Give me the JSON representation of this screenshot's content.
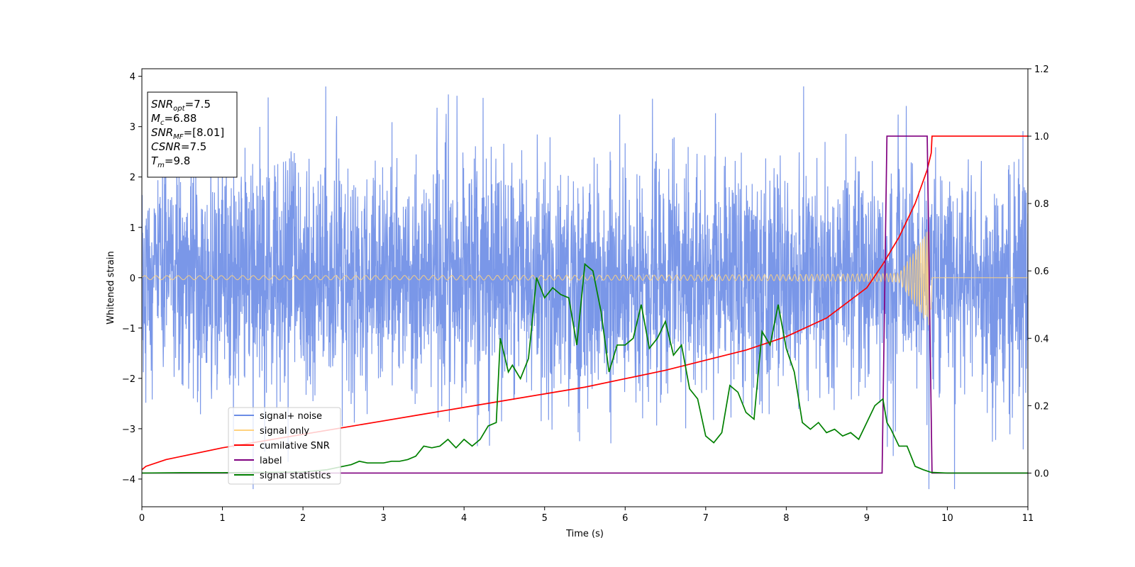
{
  "chart_data": {
    "type": "line",
    "xlabel": "Time (s)",
    "ylabel": "Whitened strain",
    "xlim": [
      0,
      11
    ],
    "ylim_left": [
      -4.55,
      4.15
    ],
    "ylim_right": [
      -0.1,
      1.2
    ],
    "x_ticks": [
      0,
      1,
      2,
      3,
      4,
      5,
      6,
      7,
      8,
      9,
      10,
      11
    ],
    "y_ticks_left": [
      -4,
      -3,
      -2,
      -1,
      0,
      1,
      2,
      3,
      4
    ],
    "y_ticks_right": [
      0.0,
      0.2,
      0.4,
      0.6,
      0.8,
      1.0,
      1.2
    ],
    "y_tick_labels_left": [
      "−4",
      "−3",
      "−2",
      "−1",
      "0",
      "1",
      "2",
      "3",
      "4"
    ],
    "y_tick_labels_right": [
      "0.0",
      "0.2",
      "0.4",
      "0.6",
      "0.8",
      "1.0",
      "1.2"
    ],
    "grid": false,
    "legend_position": "lower-left",
    "annotation": {
      "lines": [
        {
          "base": "SNR",
          "sub": "opt",
          "rest": "=7.5"
        },
        {
          "base": "M",
          "sub": "c",
          "rest": "=6.88"
        },
        {
          "base": "SNR",
          "sub": "MF",
          "rest": "=[8.01]"
        },
        {
          "base": "CSNR",
          "sub": "",
          "rest": "=7.5"
        },
        {
          "base": "T",
          "sub": "m",
          "rest": "=9.8"
        }
      ]
    },
    "series": [
      {
        "name": "signal+ noise",
        "axis": "left",
        "color": "#6b8ce6",
        "kind": "noise band",
        "noise_std": 1.0,
        "x_range": [
          0,
          11
        ]
      },
      {
        "name": "signal only",
        "axis": "left",
        "color": "#ffd27f",
        "kind": "chirp",
        "amplitude_start": 0.04,
        "amplitude_end": 0.95,
        "merger_time": 9.8
      },
      {
        "name": "cumilative SNR",
        "axis": "right",
        "color": "#ff0000",
        "x": [
          0,
          0.05,
          0.3,
          0.5,
          1,
          1.5,
          2,
          2.5,
          3,
          3.5,
          4,
          4.5,
          5,
          5.5,
          6,
          6.5,
          7,
          7.5,
          8,
          8.5,
          9,
          9.2,
          9.4,
          9.6,
          9.75,
          9.8,
          9.81,
          11
        ],
        "y": [
          0.01,
          0.02,
          0.04,
          0.05,
          0.075,
          0.095,
          0.115,
          0.135,
          0.155,
          0.175,
          0.195,
          0.215,
          0.235,
          0.255,
          0.28,
          0.305,
          0.335,
          0.365,
          0.405,
          0.46,
          0.55,
          0.62,
          0.7,
          0.8,
          0.9,
          0.95,
          1.0,
          1.0
        ]
      },
      {
        "name": "label",
        "axis": "right",
        "color": "#800080",
        "x": [
          0,
          9.19,
          9.25,
          9.75,
          9.81,
          11
        ],
        "y": [
          0,
          0,
          1,
          1,
          0,
          0
        ]
      },
      {
        "name": "signal statistics",
        "axis": "right",
        "color": "#008000",
        "x": [
          0,
          0.5,
          1,
          1.5,
          2,
          2.3,
          2.5,
          2.6,
          2.7,
          2.8,
          3.0,
          3.1,
          3.2,
          3.3,
          3.4,
          3.5,
          3.6,
          3.7,
          3.8,
          3.9,
          4.0,
          4.1,
          4.2,
          4.3,
          4.4,
          4.45,
          4.5,
          4.55,
          4.6,
          4.7,
          4.8,
          4.9,
          5.0,
          5.1,
          5.2,
          5.3,
          5.4,
          5.5,
          5.6,
          5.7,
          5.8,
          5.9,
          6.0,
          6.1,
          6.2,
          6.3,
          6.4,
          6.5,
          6.6,
          6.7,
          6.8,
          6.9,
          7.0,
          7.1,
          7.2,
          7.3,
          7.4,
          7.5,
          7.6,
          7.7,
          7.8,
          7.9,
          8.0,
          8.1,
          8.2,
          8.3,
          8.4,
          8.5,
          8.6,
          8.7,
          8.8,
          8.9,
          9.0,
          9.1,
          9.2,
          9.25,
          9.3,
          9.4,
          9.5,
          9.6,
          9.7,
          9.8,
          10,
          10.5,
          11
        ],
        "y": [
          0.0,
          0.001,
          0.001,
          0.002,
          0.003,
          0.01,
          0.02,
          0.025,
          0.035,
          0.03,
          0.03,
          0.035,
          0.035,
          0.04,
          0.05,
          0.08,
          0.075,
          0.08,
          0.1,
          0.075,
          0.1,
          0.08,
          0.1,
          0.14,
          0.15,
          0.4,
          0.35,
          0.3,
          0.32,
          0.28,
          0.34,
          0.58,
          0.52,
          0.55,
          0.53,
          0.52,
          0.38,
          0.62,
          0.6,
          0.48,
          0.3,
          0.38,
          0.38,
          0.4,
          0.5,
          0.37,
          0.4,
          0.45,
          0.35,
          0.38,
          0.25,
          0.22,
          0.11,
          0.09,
          0.12,
          0.26,
          0.24,
          0.18,
          0.16,
          0.42,
          0.38,
          0.5,
          0.37,
          0.3,
          0.15,
          0.13,
          0.15,
          0.12,
          0.13,
          0.11,
          0.12,
          0.1,
          0.15,
          0.2,
          0.22,
          0.15,
          0.13,
          0.08,
          0.08,
          0.02,
          0.01,
          0.002,
          0.0,
          0.0,
          0.0
        ]
      }
    ]
  }
}
